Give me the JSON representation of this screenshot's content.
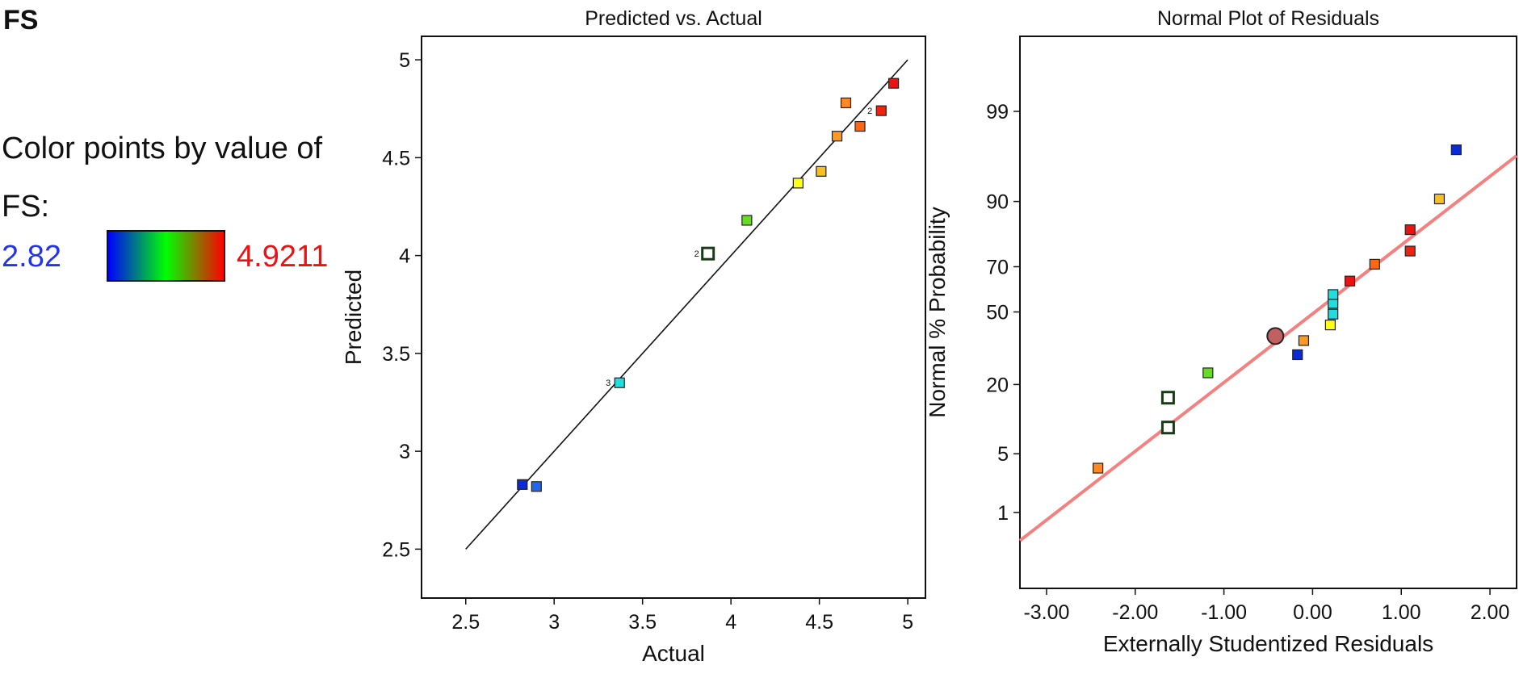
{
  "legend": {
    "title": "FS",
    "caption": "Color points by value of FS:",
    "min_label": "2.82",
    "max_label": "4.9211",
    "min_value": 2.82,
    "max_value": 4.9211,
    "gradient": [
      "#0000ff",
      "#00ff00",
      "#ff0000"
    ]
  },
  "chart_data": [
    {
      "type": "scatter",
      "title": "Predicted vs. Actual",
      "xlabel": "Actual",
      "ylabel": "Predicted",
      "xlim": [
        2.25,
        5.1
      ],
      "ylim": [
        2.25,
        5.12
      ],
      "xticks": [
        2.5,
        3,
        3.5,
        4,
        4.5,
        5
      ],
      "xtick_labels": [
        "2.5",
        "3",
        "3.5",
        "4",
        "4.5",
        "5"
      ],
      "yticks": [
        2.5,
        3,
        3.5,
        4,
        4.5,
        5
      ],
      "ytick_labels": [
        "2.5",
        "3",
        "3.5",
        "4",
        "4.5",
        "5"
      ],
      "reference_line": [
        [
          2.5,
          2.5
        ],
        [
          5,
          5
        ]
      ],
      "line_color": "#111111",
      "points": [
        {
          "x": 2.82,
          "y": 2.83,
          "color": "#0a2ad6"
        },
        {
          "x": 2.9,
          "y": 2.82,
          "color": "#2266ee"
        },
        {
          "x": 3.37,
          "y": 3.35,
          "color": "#22dddd",
          "label": "3"
        },
        {
          "x": 3.87,
          "y": 4.01,
          "color": "#ffffff",
          "hollow": true,
          "label": "2"
        },
        {
          "x": 4.09,
          "y": 4.18,
          "color": "#66dd22"
        },
        {
          "x": 4.38,
          "y": 4.37,
          "color": "#ffff11"
        },
        {
          "x": 4.51,
          "y": 4.43,
          "color": "#f5c020"
        },
        {
          "x": 4.6,
          "y": 4.61,
          "color": "#ff9922"
        },
        {
          "x": 4.65,
          "y": 4.78,
          "color": "#ff8822"
        },
        {
          "x": 4.73,
          "y": 4.66,
          "color": "#ff6611"
        },
        {
          "x": 4.85,
          "y": 4.74,
          "color": "#ee2211",
          "label": "2"
        },
        {
          "x": 4.92,
          "y": 4.88,
          "color": "#ee1111"
        }
      ]
    },
    {
      "type": "scatter",
      "title": "Normal Plot of Residuals",
      "xlabel": "Externally Studentized Residuals",
      "ylabel": "Normal % Probability",
      "xlim": [
        -3.3,
        2.3
      ],
      "x_scale": "linear",
      "y_scale": "normal probability",
      "xticks": [
        -3,
        -2,
        -1,
        0,
        1,
        2
      ],
      "xtick_labels": [
        "-3.00",
        "-2.00",
        "-1.00",
        "0.00",
        "1.00",
        "2.00"
      ],
      "ytick_labels": [
        "1",
        "5",
        "20",
        "50",
        "70",
        "90",
        "99"
      ],
      "reference_line": [
        [
          -3.3,
          0.4
        ],
        [
          2.3,
          96.5
        ]
      ],
      "line_color": "#f58080",
      "points": [
        {
          "x": -2.42,
          "y": 3.5,
          "color": "#ff8822"
        },
        {
          "x": -1.63,
          "y": 9,
          "color": "#ffffff",
          "hollow": true
        },
        {
          "x": -1.63,
          "y": 16,
          "color": "#ffffff",
          "hollow": true
        },
        {
          "x": -1.18,
          "y": 24,
          "color": "#66dd22"
        },
        {
          "x": -0.42,
          "y": 39,
          "color": "#c06060",
          "circle": true
        },
        {
          "x": -0.17,
          "y": 31,
          "color": "#0a2ad6"
        },
        {
          "x": -0.1,
          "y": 37,
          "color": "#ff9922"
        },
        {
          "x": 0.2,
          "y": 44,
          "color": "#ffff11"
        },
        {
          "x": 0.23,
          "y": 49,
          "color": "#22dddd"
        },
        {
          "x": 0.23,
          "y": 54,
          "color": "#22dddd"
        },
        {
          "x": 0.23,
          "y": 58,
          "color": "#22dddd"
        },
        {
          "x": 0.42,
          "y": 64,
          "color": "#ee1111"
        },
        {
          "x": 0.7,
          "y": 71,
          "color": "#ff6611"
        },
        {
          "x": 1.1,
          "y": 76,
          "color": "#ee2211"
        },
        {
          "x": 1.1,
          "y": 83,
          "color": "#ee1111"
        },
        {
          "x": 1.43,
          "y": 90.5,
          "color": "#f5c020"
        },
        {
          "x": 1.62,
          "y": 97,
          "color": "#0a2ad6"
        }
      ]
    }
  ]
}
